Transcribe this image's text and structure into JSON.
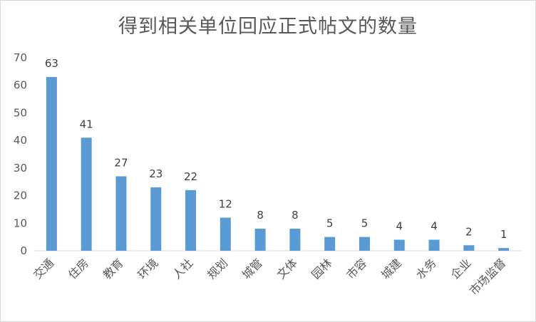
{
  "chart_data": {
    "type": "bar",
    "title": "得到相关单位回应正式帖文的数量",
    "xlabel": "",
    "ylabel": "",
    "categories": [
      "交通",
      "住房",
      "教育",
      "环境",
      "人社",
      "规划",
      "城管",
      "文体",
      "园林",
      "市容",
      "城建",
      "水务",
      "企业",
      "市场监督"
    ],
    "values": [
      63,
      41,
      27,
      23,
      22,
      12,
      8,
      8,
      5,
      5,
      4,
      4,
      2,
      1
    ],
    "ylim": [
      0,
      70
    ],
    "yticks": [
      0,
      10,
      20,
      30,
      40,
      50,
      60,
      70
    ],
    "grid": false,
    "legend": "none",
    "bar_color": "#5b9bd5"
  }
}
